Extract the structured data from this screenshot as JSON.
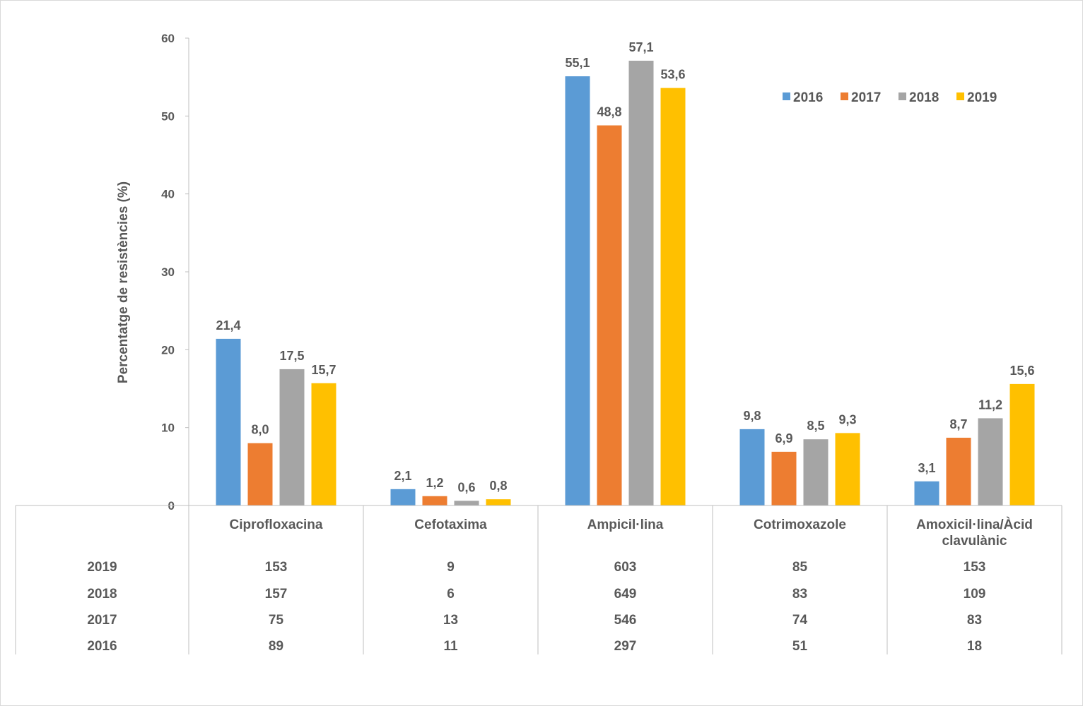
{
  "chart_data": {
    "type": "bar",
    "ylabel": "Percentatge de resistències (%)",
    "ylim": [
      0,
      60
    ],
    "yticks": [
      0,
      10,
      20,
      30,
      40,
      50,
      60
    ],
    "categories": [
      [
        "Ciprofloxacina"
      ],
      [
        "Cefotaxima"
      ],
      [
        "Ampicil·lina"
      ],
      [
        "Cotrimoxazole"
      ],
      [
        "Amoxicil·lina/Àcid",
        "clavulànic"
      ]
    ],
    "series": [
      {
        "name": "2016",
        "color": "#5b9bd5",
        "values": [
          21.4,
          2.1,
          55.1,
          9.8,
          3.1
        ],
        "labels": [
          "21,4",
          "2,1",
          "55,1",
          "9,8",
          "3,1"
        ]
      },
      {
        "name": "2017",
        "color": "#ed7d31",
        "values": [
          8.0,
          1.2,
          48.8,
          6.9,
          8.7
        ],
        "labels": [
          "8,0",
          "1,2",
          "48,8",
          "6,9",
          "8,7"
        ]
      },
      {
        "name": "2018",
        "color": "#a5a5a5",
        "values": [
          17.5,
          0.6,
          57.1,
          8.5,
          11.2
        ],
        "labels": [
          "17,5",
          "0,6",
          "57,1",
          "8,5",
          "11,2"
        ]
      },
      {
        "name": "2019",
        "color": "#ffc000",
        "values": [
          15.7,
          0.8,
          53.6,
          9.3,
          15.6
        ],
        "labels": [
          "15,7",
          "0,8",
          "53,6",
          "9,3",
          "15,6"
        ]
      }
    ],
    "legend_position": "top-right",
    "grid": false,
    "data_table": {
      "rows": [
        {
          "label": "2019",
          "values": [
            "153",
            "9",
            "603",
            "85",
            "153"
          ]
        },
        {
          "label": "2018",
          "values": [
            "157",
            "6",
            "649",
            "83",
            "109"
          ]
        },
        {
          "label": "2017",
          "values": [
            "75",
            "13",
            "546",
            "74",
            "83"
          ]
        },
        {
          "label": "2016",
          "values": [
            "89",
            "11",
            "297",
            "51",
            "18"
          ]
        }
      ]
    }
  }
}
